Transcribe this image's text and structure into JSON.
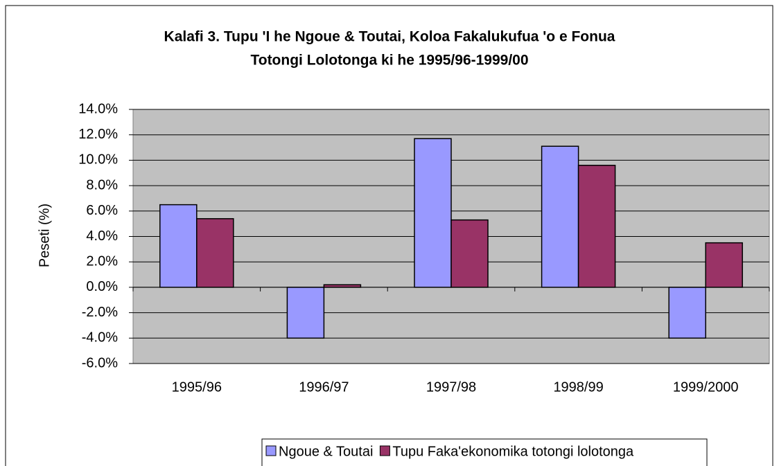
{
  "chart_data": {
    "type": "bar",
    "title": [
      "Kalafi 3. Tupu 'I he Ngoue & Toutai, Koloa Fakalukufua 'o e Fonua",
      "Totongi Lolotonga ki he 1995/96-1999/00"
    ],
    "y_label": "Peseti (%)",
    "categories": [
      "1995/96",
      "1996/97",
      "1997/98",
      "1998/99",
      "1999/2000"
    ],
    "series": [
      {
        "name": "Ngoue & Toutai",
        "color": "#9999ff",
        "values": [
          6.5,
          -4.0,
          11.7,
          11.1,
          -4.0
        ]
      },
      {
        "name": "Tupu Faka'ekonomika totongi lolotonga",
        "color": "#993366",
        "values": [
          5.4,
          0.2,
          5.3,
          9.6,
          3.5
        ]
      }
    ],
    "ylim": [
      -6,
      14
    ],
    "yticks": [
      {
        "value": -6,
        "label": "-6.0%"
      },
      {
        "value": -4,
        "label": "-4.0%"
      },
      {
        "value": -2,
        "label": "-2.0%"
      },
      {
        "value": 0,
        "label": "0.0%"
      },
      {
        "value": 2,
        "label": "2.0%"
      },
      {
        "value": 4,
        "label": "4.0%"
      },
      {
        "value": 6,
        "label": "6.0%"
      },
      {
        "value": 8,
        "label": "8.0%"
      },
      {
        "value": 10,
        "label": "10.0%"
      },
      {
        "value": 12,
        "label": "12.0%"
      },
      {
        "value": 14,
        "label": "14.0%"
      }
    ],
    "grid": true,
    "legend": "bottom",
    "plot_background": "#c0c0c0"
  }
}
